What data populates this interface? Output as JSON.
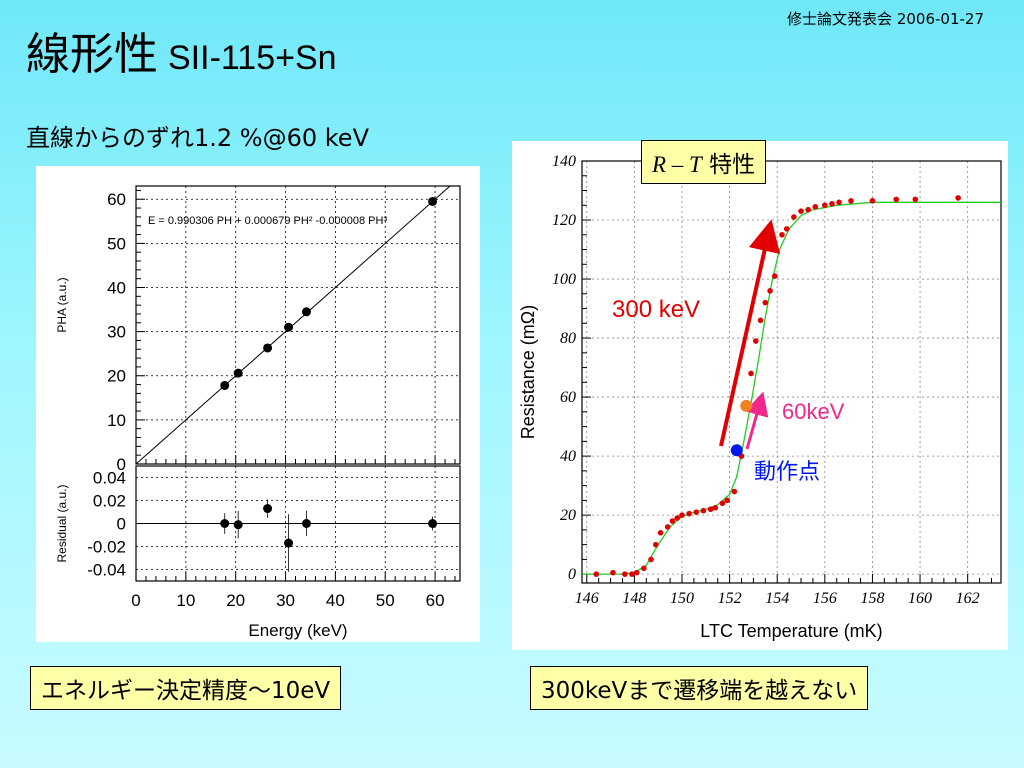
{
  "header_meta": "修士論文発表会 2006-01-27",
  "title": "線形性",
  "title_sub": "SII-115+Sn",
  "linearity_note": "直線からのずれ1.2 %@60 keV",
  "box_energy": "エネルギー決定精度～10eV",
  "box_transition": "300keVまで遷移端を越えない",
  "box_rt_prefix": "R – T",
  "box_rt_suffix": " 特性",
  "chart_data": [
    {
      "type": "scatter",
      "title": "",
      "fit_equation": "E = 0.990306 PH + 0.000679 PH² -0.000008 PH³",
      "xlabel": "Energy (keV)",
      "ylabel": "PHA (a.u.)",
      "xlim": [
        0,
        65
      ],
      "ylim": [
        0,
        63
      ],
      "x_ticks": [
        "0",
        "10",
        "20",
        "30",
        "40",
        "50",
        "60"
      ],
      "y_ticks": [
        "0",
        "10",
        "20",
        "30",
        "40",
        "50",
        "60"
      ],
      "grid": true,
      "x": [
        17.8,
        20.5,
        26.4,
        30.6,
        34.2,
        59.5
      ],
      "y": [
        17.8,
        20.6,
        26.3,
        31.0,
        34.5,
        59.5
      ],
      "residual": {
        "ylabel": "Residual (a.u.)",
        "ylim": [
          -0.05,
          0.05
        ],
        "y_ticks": [
          "0.04",
          "0.02",
          "0",
          "-0.02",
          "-0.04"
        ],
        "values": [
          0.0,
          -0.001,
          0.013,
          -0.017,
          0.0,
          0.0
        ],
        "errors": [
          0.009,
          0.012,
          0.008,
          0.025,
          0.011,
          0.006
        ]
      }
    },
    {
      "type": "line",
      "title": "",
      "xlabel": "LTC Temperature (mK)",
      "ylabel": "Resistance (mΩ)",
      "xlim": [
        145.8,
        163.4
      ],
      "ylim": [
        -3,
        140
      ],
      "x_ticks": [
        "146",
        "148",
        "150",
        "152",
        "154",
        "156",
        "158",
        "160",
        "162"
      ],
      "y_ticks": [
        "0",
        "20",
        "40",
        "60",
        "80",
        "100",
        "120",
        "140"
      ],
      "grid": true,
      "points": {
        "x": [
          146.4,
          147.1,
          147.6,
          147.9,
          148.1,
          148.4,
          148.7,
          148.9,
          149.1,
          149.4,
          149.6,
          149.8,
          150.0,
          150.3,
          150.6,
          150.9,
          151.2,
          151.4,
          151.7,
          151.9,
          152.2,
          152.5,
          152.7,
          152.9,
          153.1,
          153.3,
          153.5,
          153.7,
          153.9,
          154.2,
          154.4,
          154.7,
          155.0,
          155.3,
          155.6,
          156.0,
          156.3,
          156.6,
          157.1,
          158.0,
          159.0,
          159.8,
          161.6
        ],
        "y": [
          0,
          0.5,
          0,
          0,
          0.5,
          2,
          5,
          10,
          14,
          16,
          18,
          19,
          20,
          20.5,
          21,
          21.5,
          22,
          22.5,
          24,
          25,
          28,
          40,
          57,
          68,
          79,
          86,
          92,
          96,
          101,
          115,
          117,
          121,
          123,
          123.5,
          124.5,
          125,
          125.5,
          126,
          126.5,
          126.5,
          127,
          127,
          127.5
        ]
      },
      "fit": {
        "x": [
          145.8,
          147.5,
          148.0,
          148.5,
          149.0,
          149.5,
          150.0,
          150.5,
          151.0,
          151.5,
          152.0,
          152.3,
          152.6,
          152.9,
          153.2,
          153.5,
          153.8,
          154.1,
          154.5,
          155.0,
          155.5,
          156.5,
          158.0,
          163.4
        ],
        "y": [
          0,
          0,
          0.5,
          3,
          10,
          16,
          19.5,
          21,
          22,
          23.5,
          27,
          33,
          45,
          58,
          72,
          87,
          100,
          110,
          117,
          121.5,
          123.5,
          125,
          126,
          126
        ]
      },
      "markers": [
        {
          "label": "60keV",
          "x": 152.7,
          "y": 57,
          "color": "#f08020"
        },
        {
          "label": "動作点",
          "x": 152.3,
          "y": 42,
          "color": "#0018f0"
        }
      ],
      "arrows": [
        {
          "label": "300 keV",
          "color": "#e00000"
        },
        {
          "label": "60keV",
          "color": "#f0288c"
        }
      ]
    }
  ]
}
